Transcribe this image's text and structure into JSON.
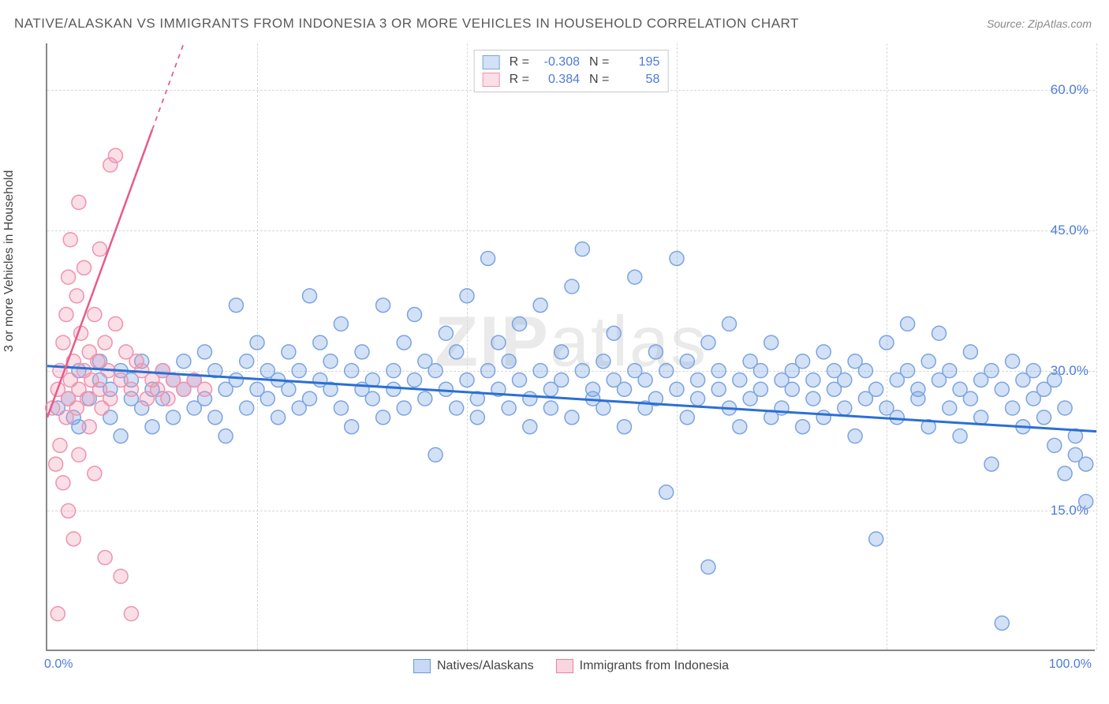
{
  "title": "NATIVE/ALASKAN VS IMMIGRANTS FROM INDONESIA 3 OR MORE VEHICLES IN HOUSEHOLD CORRELATION CHART",
  "source": "Source: ZipAtlas.com",
  "ylabel": "3 or more Vehicles in Household",
  "watermark_bold": "ZIP",
  "watermark_rest": "atlas",
  "chart": {
    "type": "scatter",
    "xlim": [
      0,
      100
    ],
    "ylim": [
      0,
      65
    ],
    "x_ticks": [
      0,
      20,
      40,
      60,
      80,
      100
    ],
    "x_tick_labels_shown": {
      "0": "0.0%",
      "100": "100.0%"
    },
    "y_ticks": [
      15,
      30,
      45,
      60
    ],
    "y_tick_labels": {
      "15": "15.0%",
      "30": "30.0%",
      "45": "45.0%",
      "60": "60.0%"
    },
    "background_color": "#ffffff",
    "grid_color": "#d8d8d8",
    "axis_color": "#888888",
    "tick_label_color": "#4d7bd6",
    "series": [
      {
        "name": "Natives/Alaskans",
        "fill": "rgba(130,170,230,0.35)",
        "stroke": "#7ba4e0",
        "marker_radius": 9,
        "trend": {
          "x1": 0,
          "y1": 30.5,
          "x2": 100,
          "y2": 23.5,
          "color": "#2b6fd6",
          "width": 3
        },
        "stats": {
          "R": "-0.308",
          "N": "195"
        },
        "points": [
          [
            1,
            26
          ],
          [
            2,
            27
          ],
          [
            2.5,
            25
          ],
          [
            3,
            30
          ],
          [
            3,
            24
          ],
          [
            4,
            27
          ],
          [
            5,
            29
          ],
          [
            5,
            31
          ],
          [
            6,
            25
          ],
          [
            6,
            28
          ],
          [
            7,
            30
          ],
          [
            7,
            23
          ],
          [
            8,
            27
          ],
          [
            8,
            29
          ],
          [
            9,
            26
          ],
          [
            9,
            31
          ],
          [
            10,
            28
          ],
          [
            10,
            24
          ],
          [
            11,
            30
          ],
          [
            11,
            27
          ],
          [
            12,
            29
          ],
          [
            12,
            25
          ],
          [
            13,
            28
          ],
          [
            13,
            31
          ],
          [
            14,
            26
          ],
          [
            14,
            29
          ],
          [
            15,
            27
          ],
          [
            15,
            32
          ],
          [
            16,
            30
          ],
          [
            16,
            25
          ],
          [
            17,
            28
          ],
          [
            17,
            23
          ],
          [
            18,
            37
          ],
          [
            18,
            29
          ],
          [
            19,
            26
          ],
          [
            19,
            31
          ],
          [
            20,
            28
          ],
          [
            20,
            33
          ],
          [
            21,
            27
          ],
          [
            21,
            30
          ],
          [
            22,
            29
          ],
          [
            22,
            25
          ],
          [
            23,
            32
          ],
          [
            23,
            28
          ],
          [
            24,
            26
          ],
          [
            24,
            30
          ],
          [
            25,
            38
          ],
          [
            25,
            27
          ],
          [
            26,
            29
          ],
          [
            26,
            33
          ],
          [
            27,
            28
          ],
          [
            27,
            31
          ],
          [
            28,
            26
          ],
          [
            28,
            35
          ],
          [
            29,
            30
          ],
          [
            29,
            24
          ],
          [
            30,
            28
          ],
          [
            30,
            32
          ],
          [
            31,
            27
          ],
          [
            31,
            29
          ],
          [
            32,
            37
          ],
          [
            32,
            25
          ],
          [
            33,
            30
          ],
          [
            33,
            28
          ],
          [
            34,
            33
          ],
          [
            34,
            26
          ],
          [
            35,
            29
          ],
          [
            35,
            36
          ],
          [
            36,
            27
          ],
          [
            36,
            31
          ],
          [
            37,
            30
          ],
          [
            37,
            21
          ],
          [
            38,
            28
          ],
          [
            38,
            34
          ],
          [
            39,
            26
          ],
          [
            39,
            32
          ],
          [
            40,
            29
          ],
          [
            40,
            38
          ],
          [
            41,
            27
          ],
          [
            41,
            25
          ],
          [
            42,
            30
          ],
          [
            42,
            42
          ],
          [
            43,
            28
          ],
          [
            43,
            33
          ],
          [
            44,
            26
          ],
          [
            44,
            31
          ],
          [
            45,
            29
          ],
          [
            45,
            35
          ],
          [
            46,
            27
          ],
          [
            46,
            24
          ],
          [
            47,
            30
          ],
          [
            47,
            37
          ],
          [
            48,
            28
          ],
          [
            48,
            26
          ],
          [
            49,
            32
          ],
          [
            49,
            29
          ],
          [
            50,
            39
          ],
          [
            50,
            25
          ],
          [
            51,
            30
          ],
          [
            51,
            43
          ],
          [
            52,
            27
          ],
          [
            52,
            28
          ],
          [
            53,
            31
          ],
          [
            53,
            26
          ],
          [
            54,
            29
          ],
          [
            54,
            34
          ],
          [
            55,
            28
          ],
          [
            55,
            24
          ],
          [
            56,
            30
          ],
          [
            56,
            40
          ],
          [
            57,
            26
          ],
          [
            57,
            29
          ],
          [
            58,
            32
          ],
          [
            58,
            27
          ],
          [
            59,
            17
          ],
          [
            59,
            30
          ],
          [
            60,
            28
          ],
          [
            60,
            42
          ],
          [
            61,
            25
          ],
          [
            61,
            31
          ],
          [
            62,
            29
          ],
          [
            62,
            27
          ],
          [
            63,
            33
          ],
          [
            63,
            9
          ],
          [
            64,
            28
          ],
          [
            64,
            30
          ],
          [
            65,
            26
          ],
          [
            65,
            35
          ],
          [
            66,
            29
          ],
          [
            66,
            24
          ],
          [
            67,
            31
          ],
          [
            67,
            27
          ],
          [
            68,
            30
          ],
          [
            68,
            28
          ],
          [
            69,
            25
          ],
          [
            69,
            33
          ],
          [
            70,
            29
          ],
          [
            70,
            26
          ],
          [
            71,
            30
          ],
          [
            71,
            28
          ],
          [
            72,
            24
          ],
          [
            72,
            31
          ],
          [
            73,
            27
          ],
          [
            73,
            29
          ],
          [
            74,
            32
          ],
          [
            74,
            25
          ],
          [
            75,
            28
          ],
          [
            75,
            30
          ],
          [
            76,
            26
          ],
          [
            76,
            29
          ],
          [
            77,
            31
          ],
          [
            77,
            23
          ],
          [
            78,
            27
          ],
          [
            78,
            30
          ],
          [
            79,
            28
          ],
          [
            79,
            12
          ],
          [
            80,
            33
          ],
          [
            80,
            26
          ],
          [
            81,
            29
          ],
          [
            81,
            25
          ],
          [
            82,
            30
          ],
          [
            82,
            35
          ],
          [
            83,
            27
          ],
          [
            83,
            28
          ],
          [
            84,
            31
          ],
          [
            84,
            24
          ],
          [
            85,
            29
          ],
          [
            85,
            34
          ],
          [
            86,
            26
          ],
          [
            86,
            30
          ],
          [
            87,
            28
          ],
          [
            87,
            23
          ],
          [
            88,
            32
          ],
          [
            88,
            27
          ],
          [
            89,
            29
          ],
          [
            89,
            25
          ],
          [
            90,
            30
          ],
          [
            90,
            20
          ],
          [
            91,
            28
          ],
          [
            91,
            3
          ],
          [
            92,
            26
          ],
          [
            92,
            31
          ],
          [
            93,
            29
          ],
          [
            93,
            24
          ],
          [
            94,
            27
          ],
          [
            94,
            30
          ],
          [
            95,
            25
          ],
          [
            95,
            28
          ],
          [
            96,
            22
          ],
          [
            96,
            29
          ],
          [
            97,
            26
          ],
          [
            97,
            19
          ],
          [
            98,
            23
          ],
          [
            98,
            21
          ],
          [
            99,
            16
          ],
          [
            99,
            20
          ]
        ]
      },
      {
        "name": "Immigrants from Indonesia",
        "fill": "rgba(240,150,175,0.3)",
        "stroke": "#f092af",
        "marker_radius": 9,
        "trend": {
          "x1": 0,
          "y1": 25,
          "x2": 13,
          "y2": 65,
          "color": "#e85a8a",
          "width": 2.5,
          "dash_after_x": 10
        },
        "stats": {
          "R": "0.384",
          "N": "58"
        },
        "points": [
          [
            0.5,
            26
          ],
          [
            0.8,
            20
          ],
          [
            1,
            28
          ],
          [
            1,
            4
          ],
          [
            1.2,
            30
          ],
          [
            1.2,
            22
          ],
          [
            1.5,
            33
          ],
          [
            1.5,
            18
          ],
          [
            1.8,
            25
          ],
          [
            1.8,
            36
          ],
          [
            2,
            27
          ],
          [
            2,
            40
          ],
          [
            2,
            15
          ],
          [
            2.2,
            29
          ],
          [
            2.2,
            44
          ],
          [
            2.5,
            31
          ],
          [
            2.5,
            12
          ],
          [
            2.8,
            26
          ],
          [
            2.8,
            38
          ],
          [
            3,
            28
          ],
          [
            3,
            48
          ],
          [
            3,
            21
          ],
          [
            3.2,
            34
          ],
          [
            3.5,
            30
          ],
          [
            3.5,
            41
          ],
          [
            3.8,
            27
          ],
          [
            4,
            32
          ],
          [
            4,
            24
          ],
          [
            4.2,
            29
          ],
          [
            4.5,
            36
          ],
          [
            4.5,
            19
          ],
          [
            4.8,
            31
          ],
          [
            5,
            28
          ],
          [
            5,
            43
          ],
          [
            5.2,
            26
          ],
          [
            5.5,
            33
          ],
          [
            5.5,
            10
          ],
          [
            5.8,
            30
          ],
          [
            6,
            52
          ],
          [
            6,
            27
          ],
          [
            6.5,
            35
          ],
          [
            6.5,
            53
          ],
          [
            7,
            29
          ],
          [
            7,
            8
          ],
          [
            7.5,
            32
          ],
          [
            8,
            28
          ],
          [
            8,
            4
          ],
          [
            8.5,
            31
          ],
          [
            9,
            30
          ],
          [
            9.5,
            27
          ],
          [
            10,
            29
          ],
          [
            10.5,
            28
          ],
          [
            11,
            30
          ],
          [
            11.5,
            27
          ],
          [
            12,
            29
          ],
          [
            13,
            28
          ],
          [
            14,
            29
          ],
          [
            15,
            28
          ]
        ]
      }
    ]
  },
  "legend_top": {
    "stat_label_R": "R =",
    "stat_label_N": "N ="
  },
  "legend_bottom": [
    {
      "label": "Natives/Alaskans",
      "fill": "rgba(130,170,230,0.45)",
      "stroke": "#6a98da"
    },
    {
      "label": "Immigrants from Indonesia",
      "fill": "rgba(240,150,175,0.4)",
      "stroke": "#ec7fa3"
    }
  ]
}
